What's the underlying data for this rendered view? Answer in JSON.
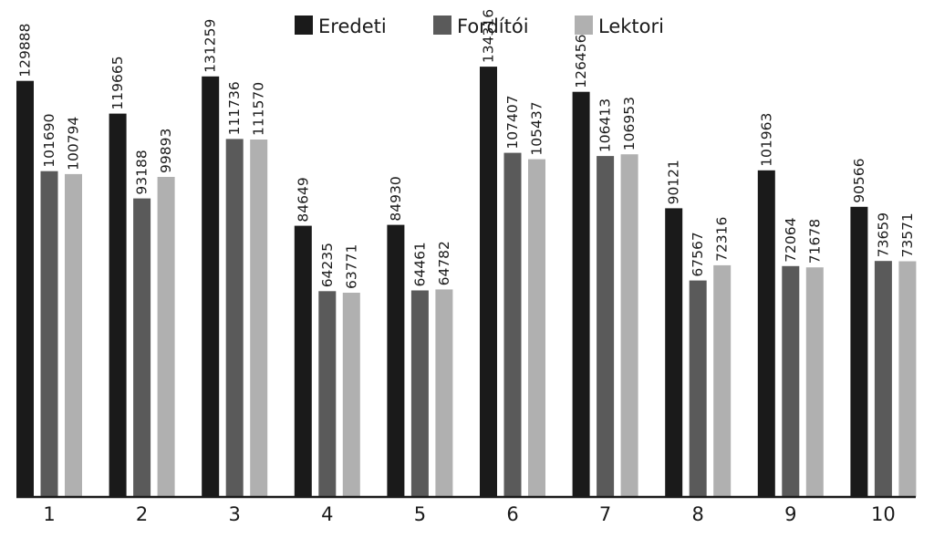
{
  "chart_data": {
    "type": "bar",
    "title": "",
    "xlabel": "",
    "ylabel": "",
    "ylim": [
      0,
      150000
    ],
    "grid": false,
    "legend": "top-center",
    "categories": [
      "1",
      "2",
      "3",
      "4",
      "5",
      "6",
      "7",
      "8",
      "9",
      "10"
    ],
    "series": [
      {
        "name": "Eredeti",
        "color": "#1a1a1a",
        "values": [
          129888,
          119665,
          131259,
          84649,
          84930,
          134316,
          126456,
          90121,
          101963,
          90566
        ]
      },
      {
        "name": "Fordítói",
        "color": "#5a5a5a",
        "values": [
          101690,
          93188,
          111736,
          64235,
          64461,
          107407,
          106413,
          67567,
          72064,
          73659
        ]
      },
      {
        "name": "Lektori",
        "color": "#b0b0b0",
        "values": [
          100794,
          99893,
          111570,
          63771,
          64782,
          105437,
          106953,
          72316,
          71678,
          73571
        ]
      }
    ]
  }
}
